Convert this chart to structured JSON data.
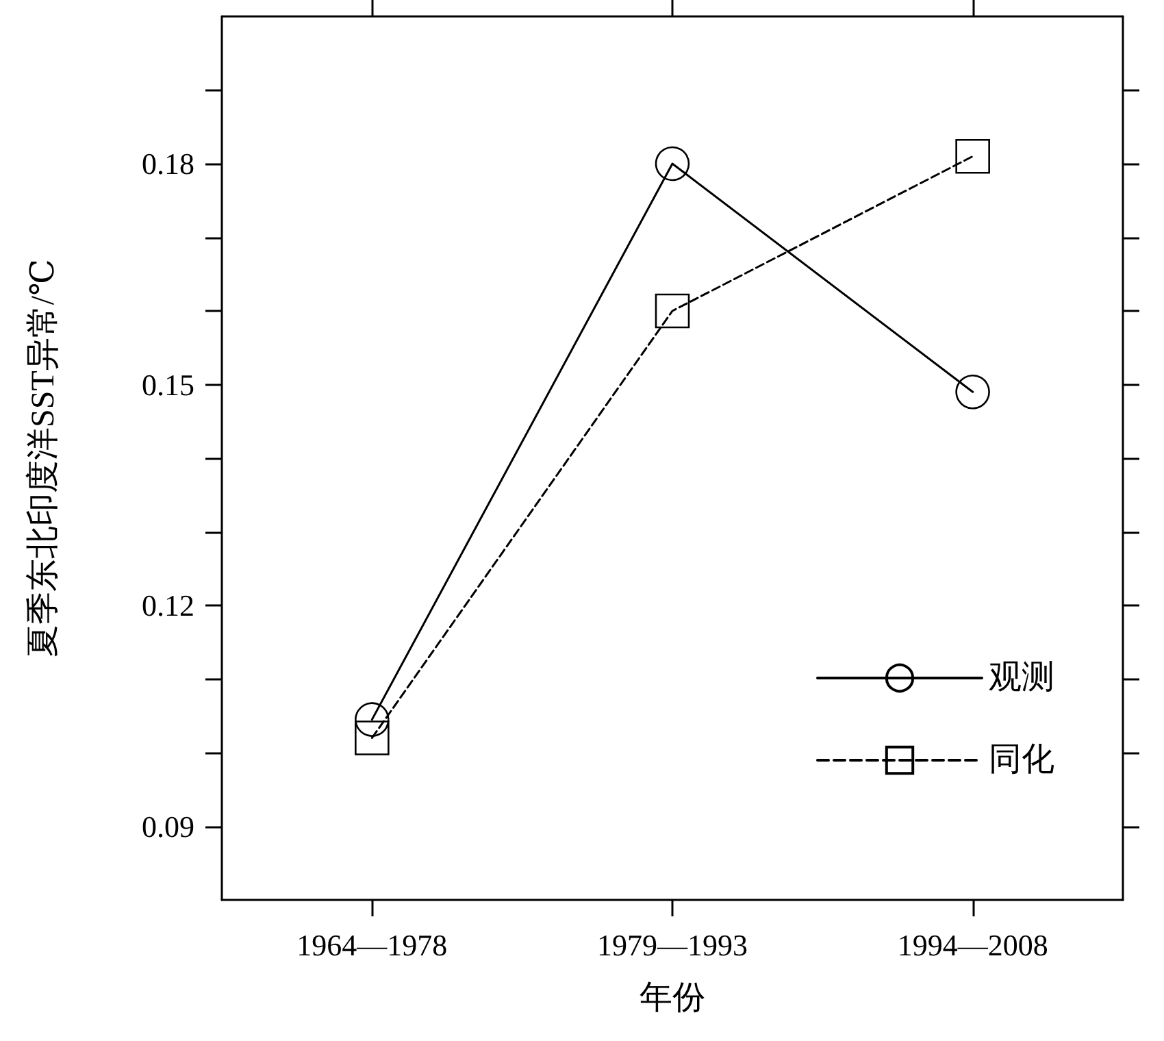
{
  "chart_data": {
    "type": "line",
    "xlabel": "年份",
    "ylabel": "夏季东北印度洋SST异常/℃",
    "categories": [
      "1964—1978",
      "1979—1993",
      "1994—2008"
    ],
    "series": [
      {
        "name": "观测",
        "color": "#000000",
        "marker": "circle",
        "line_style": "solid",
        "values": [
          0.1045,
          0.18,
          0.149
        ]
      },
      {
        "name": "同化",
        "color": "#000000",
        "marker": "square",
        "line_style": "dashed",
        "values": [
          0.102,
          0.16,
          0.181
        ]
      }
    ],
    "ylim": [
      0.08,
      0.2
    ],
    "yticks": [
      0.09,
      {
        "value": 0.1,
        "label": null
      },
      {
        "value": 0.11,
        "label": null
      },
      0.12,
      {
        "value": 0.13,
        "label": null
      },
      {
        "value": 0.14,
        "label": null
      },
      0.15,
      {
        "value": 0.16,
        "label": null
      },
      {
        "value": 0.17,
        "label": null
      },
      0.18,
      {
        "value": 0.19,
        "label": null
      }
    ],
    "grid": false,
    "legend": "bottom right"
  }
}
